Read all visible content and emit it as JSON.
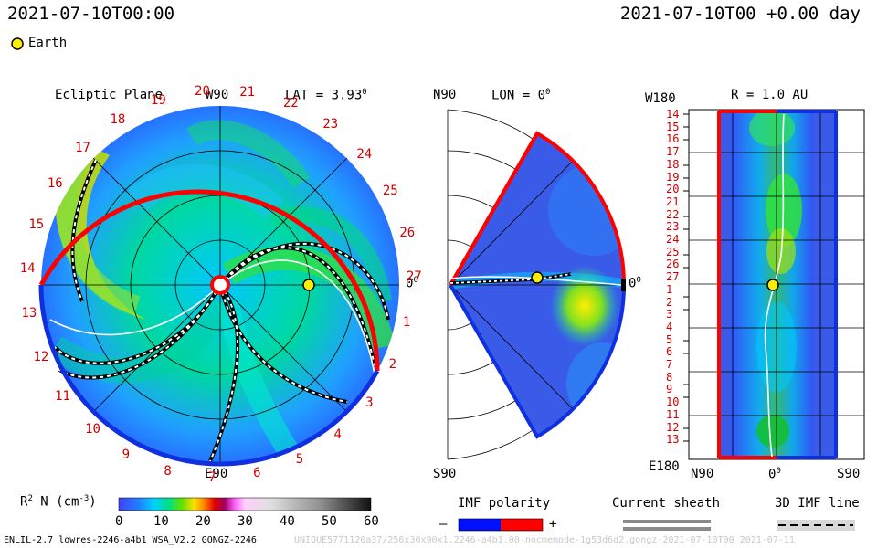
{
  "header": {
    "left_title": "2021-07-10T00:00",
    "right_title": "2021-07-10T00 +0.00 day"
  },
  "legend": {
    "earth_label": "Earth"
  },
  "panels": {
    "ecliptic": {
      "title": "Ecliptic Plane",
      "top_label": "W90",
      "bottom_label": "E90",
      "right_label": "0",
      "right_label_sup": "0",
      "lat_label": "LAT = 3.93",
      "lat_sup": "0",
      "carrington_ticks": [
        "1",
        "2",
        "3",
        "4",
        "5",
        "6",
        "7",
        "8",
        "9",
        "10",
        "11",
        "12",
        "13",
        "14",
        "15",
        "16",
        "17",
        "18",
        "19",
        "20",
        "21",
        "22",
        "23",
        "24",
        "25",
        "26",
        "27"
      ]
    },
    "meridional": {
      "top_label": "N90",
      "bottom_label": "S90",
      "lon_label": "LON = 0",
      "lon_sup": "0",
      "right_label": "0",
      "right_label_sup": "0"
    },
    "radial": {
      "title": "R = 1.0 AU",
      "top_left_label": "W180",
      "bottom_left_label": "E180",
      "x_labels": [
        "N90",
        "0",
        "S90"
      ],
      "x_label_sup": "0",
      "y_ticks": [
        "14",
        "15",
        "16",
        "17",
        "18",
        "19",
        "20",
        "21",
        "22",
        "23",
        "24",
        "25",
        "26",
        "27",
        "1",
        "2",
        "3",
        "4",
        "5",
        "6",
        "7",
        "8",
        "9",
        "10",
        "11",
        "12",
        "13"
      ]
    }
  },
  "colorbar": {
    "label": "R",
    "label_sup": "2",
    "label_rest": " N (cm",
    "label_sup2": "-3",
    "label_end": ")",
    "ticks": [
      "0",
      "10",
      "20",
      "30",
      "40",
      "50",
      "60"
    ],
    "range": [
      0,
      60
    ]
  },
  "keys": {
    "imf_polarity_title": "IMF polarity",
    "minus": "–",
    "plus": "+",
    "current_sheath_title": "Current sheath",
    "imf_line_title": "3D IMF line"
  },
  "footer": {
    "model_info": "ENLIL-2.7 lowres-2246-a4b1 WSA_V2.2 GONGZ-2246",
    "run_info": "UNIQUE5771120a37/256x30x90x1.2246-a4b1.00-nocmemode-1g53d6d2.gongz-2021-07-10T00   2021-07-11"
  },
  "colors": {
    "accent_red": "#ff0000",
    "accent_blue": "#1030e0",
    "earth_yellow": "#ffee00"
  },
  "chart_data": {
    "type": "heatmap",
    "variable": "R^2 N (cm^-3)",
    "value_range": [
      0,
      60
    ],
    "earth": {
      "longitude_deg": 0,
      "latitude_deg": 3.93,
      "r_au": 1.0
    },
    "time": "2021-07-10T00",
    "offset_day": 0.0
  }
}
